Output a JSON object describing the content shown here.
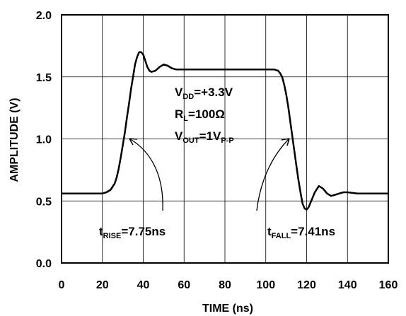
{
  "chart_data": {
    "type": "line",
    "title": "",
    "xlabel": "TIME (ns)",
    "ylabel": "AMPLITUDE (V)",
    "xlim": [
      0,
      160
    ],
    "ylim": [
      0,
      2.0
    ],
    "x_ticks": [
      0,
      20,
      40,
      60,
      80,
      100,
      120,
      140,
      160
    ],
    "y_ticks": [
      0,
      0.5,
      1.0,
      1.5,
      2.0
    ],
    "x_tick_labels": [
      "0",
      "20",
      "40",
      "60",
      "80",
      "100",
      "120",
      "140",
      "160"
    ],
    "y_tick_labels": [
      "0.0",
      "0.5",
      "1.0",
      "1.5",
      "2.0"
    ],
    "grid": true,
    "line_color": "#000000",
    "series": [
      {
        "x": [
          0,
          5,
          10,
          15,
          20,
          22,
          24,
          26,
          27,
          28,
          29,
          30,
          31,
          32,
          33,
          34,
          35,
          36,
          37,
          38,
          39,
          40,
          41,
          42,
          43,
          44,
          46,
          48,
          50,
          52,
          54,
          56,
          58,
          60,
          70,
          80,
          90,
          100,
          104,
          106,
          107,
          108,
          109,
          110,
          111,
          112,
          113,
          114,
          115,
          116,
          117,
          118,
          119,
          120,
          121,
          122,
          124,
          126,
          128,
          130,
          132,
          134,
          136,
          138,
          140,
          145,
          150,
          155,
          160
        ],
        "y": [
          0.56,
          0.56,
          0.56,
          0.56,
          0.56,
          0.57,
          0.59,
          0.64,
          0.69,
          0.76,
          0.85,
          0.95,
          1.05,
          1.17,
          1.28,
          1.4,
          1.5,
          1.6,
          1.66,
          1.7,
          1.7,
          1.68,
          1.63,
          1.58,
          1.55,
          1.54,
          1.55,
          1.58,
          1.6,
          1.59,
          1.57,
          1.56,
          1.56,
          1.56,
          1.56,
          1.56,
          1.56,
          1.56,
          1.56,
          1.55,
          1.53,
          1.5,
          1.44,
          1.36,
          1.26,
          1.14,
          1.02,
          0.9,
          0.78,
          0.67,
          0.57,
          0.48,
          0.44,
          0.43,
          0.45,
          0.49,
          0.57,
          0.62,
          0.6,
          0.56,
          0.54,
          0.55,
          0.56,
          0.57,
          0.57,
          0.56,
          0.56,
          0.56,
          0.56
        ]
      }
    ],
    "annotations": {
      "vdd_main": "V",
      "vdd_sub": "DD",
      "vdd_rest": "=+3.3V",
      "rl_main": "R",
      "rl_sub": "L",
      "rl_rest": "=100Ω",
      "vout_main": "V",
      "vout_sub": "OUT",
      "vout_mid": "=1V",
      "vout_sub2": "P-P",
      "trise_main": "t",
      "trise_sub": "RISE",
      "trise_rest": "=7.75ns",
      "tfall_main": "t",
      "tfall_sub": "FALL",
      "tfall_rest": "=7.41ns"
    }
  }
}
